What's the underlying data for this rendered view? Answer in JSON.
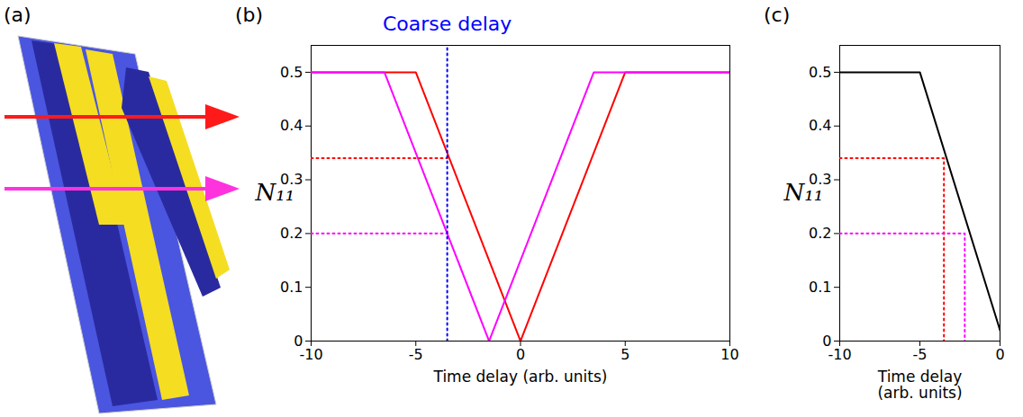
{
  "chart_data": [
    {
      "type": "diagram",
      "panel": "(a)"
    },
    {
      "type": "line",
      "panel": "(b)",
      "x_label": "Time delay (arb. units)",
      "y_label": "N₁₁",
      "xlim": [
        -10,
        10
      ],
      "xticks": [
        -10,
        -5,
        0,
        5,
        10
      ],
      "ylim": [
        0,
        0.55
      ],
      "yticks": [
        0,
        0.1,
        0.2,
        0.3,
        0.4,
        0.5
      ],
      "series": [
        {
          "color": "#ff0000",
          "line_style": "solid",
          "x": [
            -10,
            -5,
            0,
            5,
            10
          ],
          "values": [
            0.5,
            0.5,
            0,
            0.5,
            0.5
          ]
        },
        {
          "color": "#ff00ff",
          "line_style": "solid",
          "x": [
            -10,
            -6.5,
            -1.5,
            3.5,
            10
          ],
          "values": [
            0.5,
            0.5,
            0,
            0.5,
            0.5
          ]
        },
        {
          "color": "#ff0000",
          "line_style": "dotted",
          "x": [
            -10,
            -3.5
          ],
          "values": [
            0.34,
            0.34
          ]
        },
        {
          "color": "#ff00ff",
          "line_style": "dotted",
          "x": [
            -10,
            -3.5
          ],
          "values": [
            0.2,
            0.2
          ]
        }
      ],
      "annotations": [
        {
          "text": "Coarse delay",
          "x": -3.5,
          "color": "#0000ff",
          "line_style": "dotted"
        }
      ]
    },
    {
      "type": "line",
      "panel": "(c)",
      "x_label": "Time delay (arb. units)",
      "y_label": "N₁₁",
      "xlim": [
        -10,
        0
      ],
      "xticks": [
        -10,
        -5,
        0
      ],
      "ylim": [
        0,
        0.55
      ],
      "yticks": [
        0,
        0.1,
        0.2,
        0.3,
        0.4,
        0.5
      ],
      "series": [
        {
          "color": "#000000",
          "line_style": "solid",
          "x": [
            -10,
            -5,
            0
          ],
          "values": [
            0.5,
            0.5,
            0.02
          ]
        },
        {
          "color": "#ff0000",
          "line_style": "dotted",
          "x": [
            -10,
            -3.5,
            -3.5
          ],
          "values": [
            0.34,
            0.34,
            0
          ]
        },
        {
          "color": "#ff00ff",
          "line_style": "dotted",
          "x": [
            -10,
            -2.2,
            -2.2
          ],
          "values": [
            0.2,
            0.2,
            0
          ]
        }
      ]
    }
  ]
}
